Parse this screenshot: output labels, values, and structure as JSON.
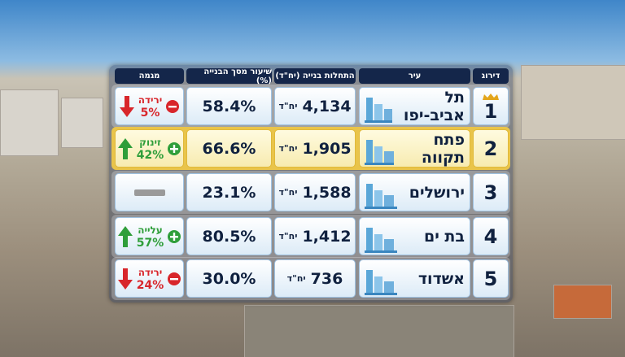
{
  "table": {
    "headers": [
      "דירוג",
      "עיר",
      "התחלות בנייה (יח\"ד)",
      "שיעור מסך הבנייה (%)",
      "מגמה"
    ],
    "rows": [
      {
        "rank": "1",
        "city": "תל אביב-יפו",
        "starts": "4,134",
        "unit": "יח\"ד",
        "share": "58.4%",
        "trend": {
          "label": "ירידה",
          "pct": "5%",
          "direction": "down"
        }
      },
      {
        "rank": "2",
        "city": "פתח תקווה",
        "starts": "1,905",
        "unit": "יח\"ד",
        "share": "66.6%",
        "trend": {
          "label": "זינוק",
          "pct": "42%",
          "direction": "up"
        },
        "highlight": true
      },
      {
        "rank": "3",
        "city": "ירושלים",
        "starts": "1,588",
        "unit": "יח\"ד",
        "share": "23.1%",
        "trend": {
          "direction": "flat"
        }
      },
      {
        "rank": "4",
        "city": "בת ים",
        "starts": "1,412",
        "unit": "יח\"ד",
        "share": "80.5%",
        "trend": {
          "label": "עלייה",
          "pct": "57%",
          "direction": "up"
        }
      },
      {
        "rank": "5",
        "city": "אשדוד",
        "starts": "736",
        "unit": "יח\"ד",
        "share": "30.0%",
        "trend": {
          "label": "ירידה",
          "pct": "24%",
          "direction": "down"
        }
      }
    ]
  }
}
